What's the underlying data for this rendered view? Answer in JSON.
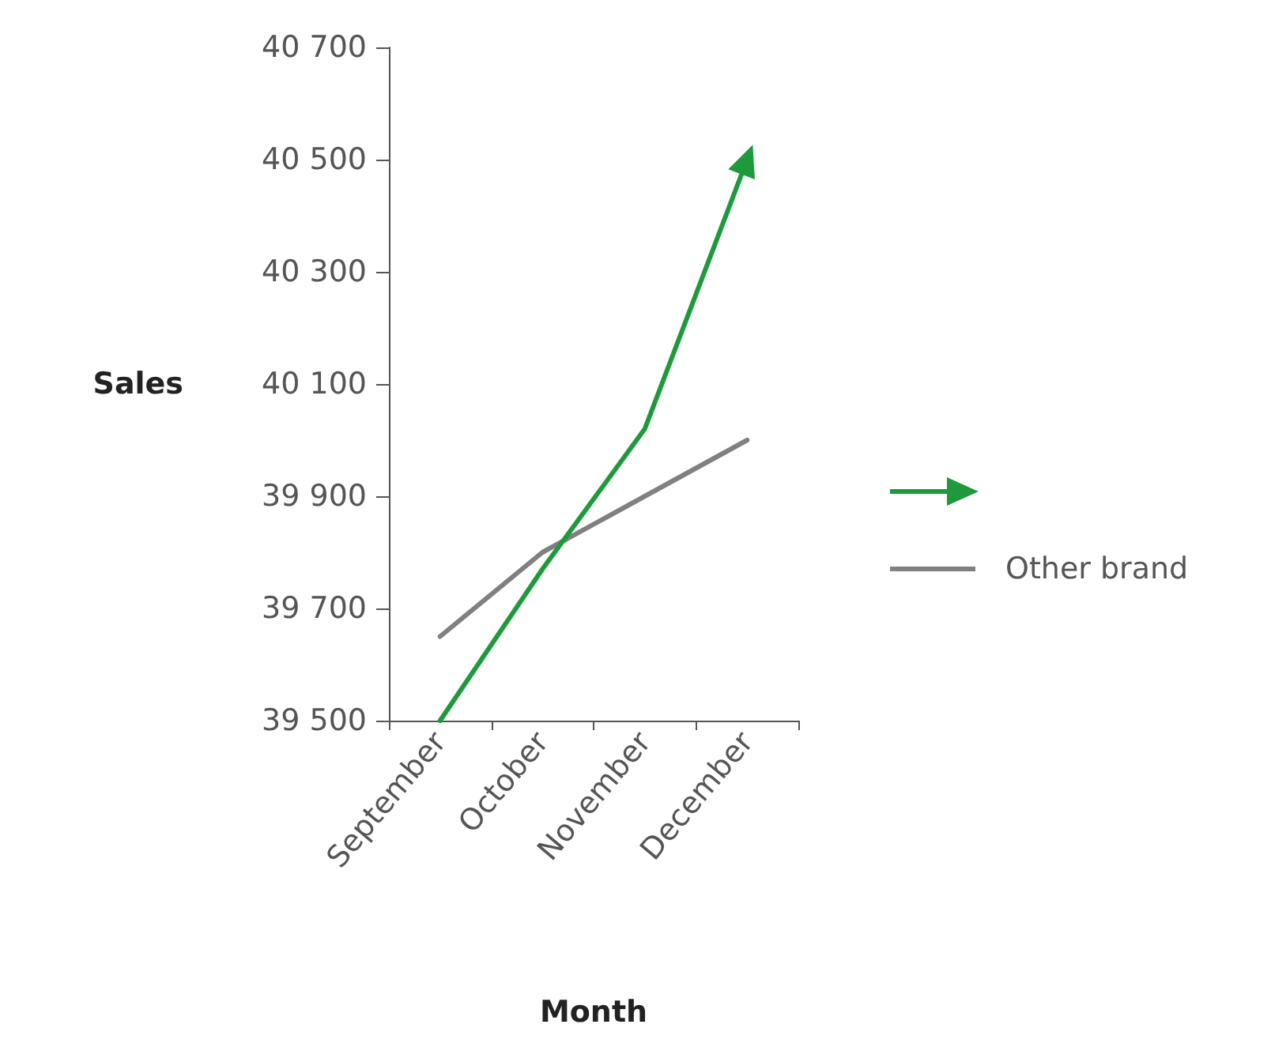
{
  "chart_data": {
    "type": "line",
    "xlabel": "Month",
    "ylabel": "Sales",
    "categories": [
      "September",
      "October",
      "November",
      "December"
    ],
    "series": [
      {
        "color": "#1e9a3c",
        "values": [
          39500,
          39770,
          40020,
          40500
        ]
      },
      {
        "name": "Other brand",
        "color": "#808080",
        "values": [
          39650,
          39800,
          39900,
          40000
        ]
      }
    ],
    "ylim": [
      39500,
      40700
    ],
    "yticks": [
      {
        "value": 39500,
        "label": "39 500"
      },
      {
        "value": 39700,
        "label": "39 700"
      },
      {
        "value": 39900,
        "label": "39 900"
      },
      {
        "value": 40100,
        "label": "40 100"
      },
      {
        "value": 40300,
        "label": "40 300"
      },
      {
        "value": 40500,
        "label": "40 500"
      },
      {
        "value": 40700,
        "label": "40 700"
      }
    ],
    "grid": false,
    "legend": "right",
    "marker": "none",
    "line_style": "solid"
  }
}
